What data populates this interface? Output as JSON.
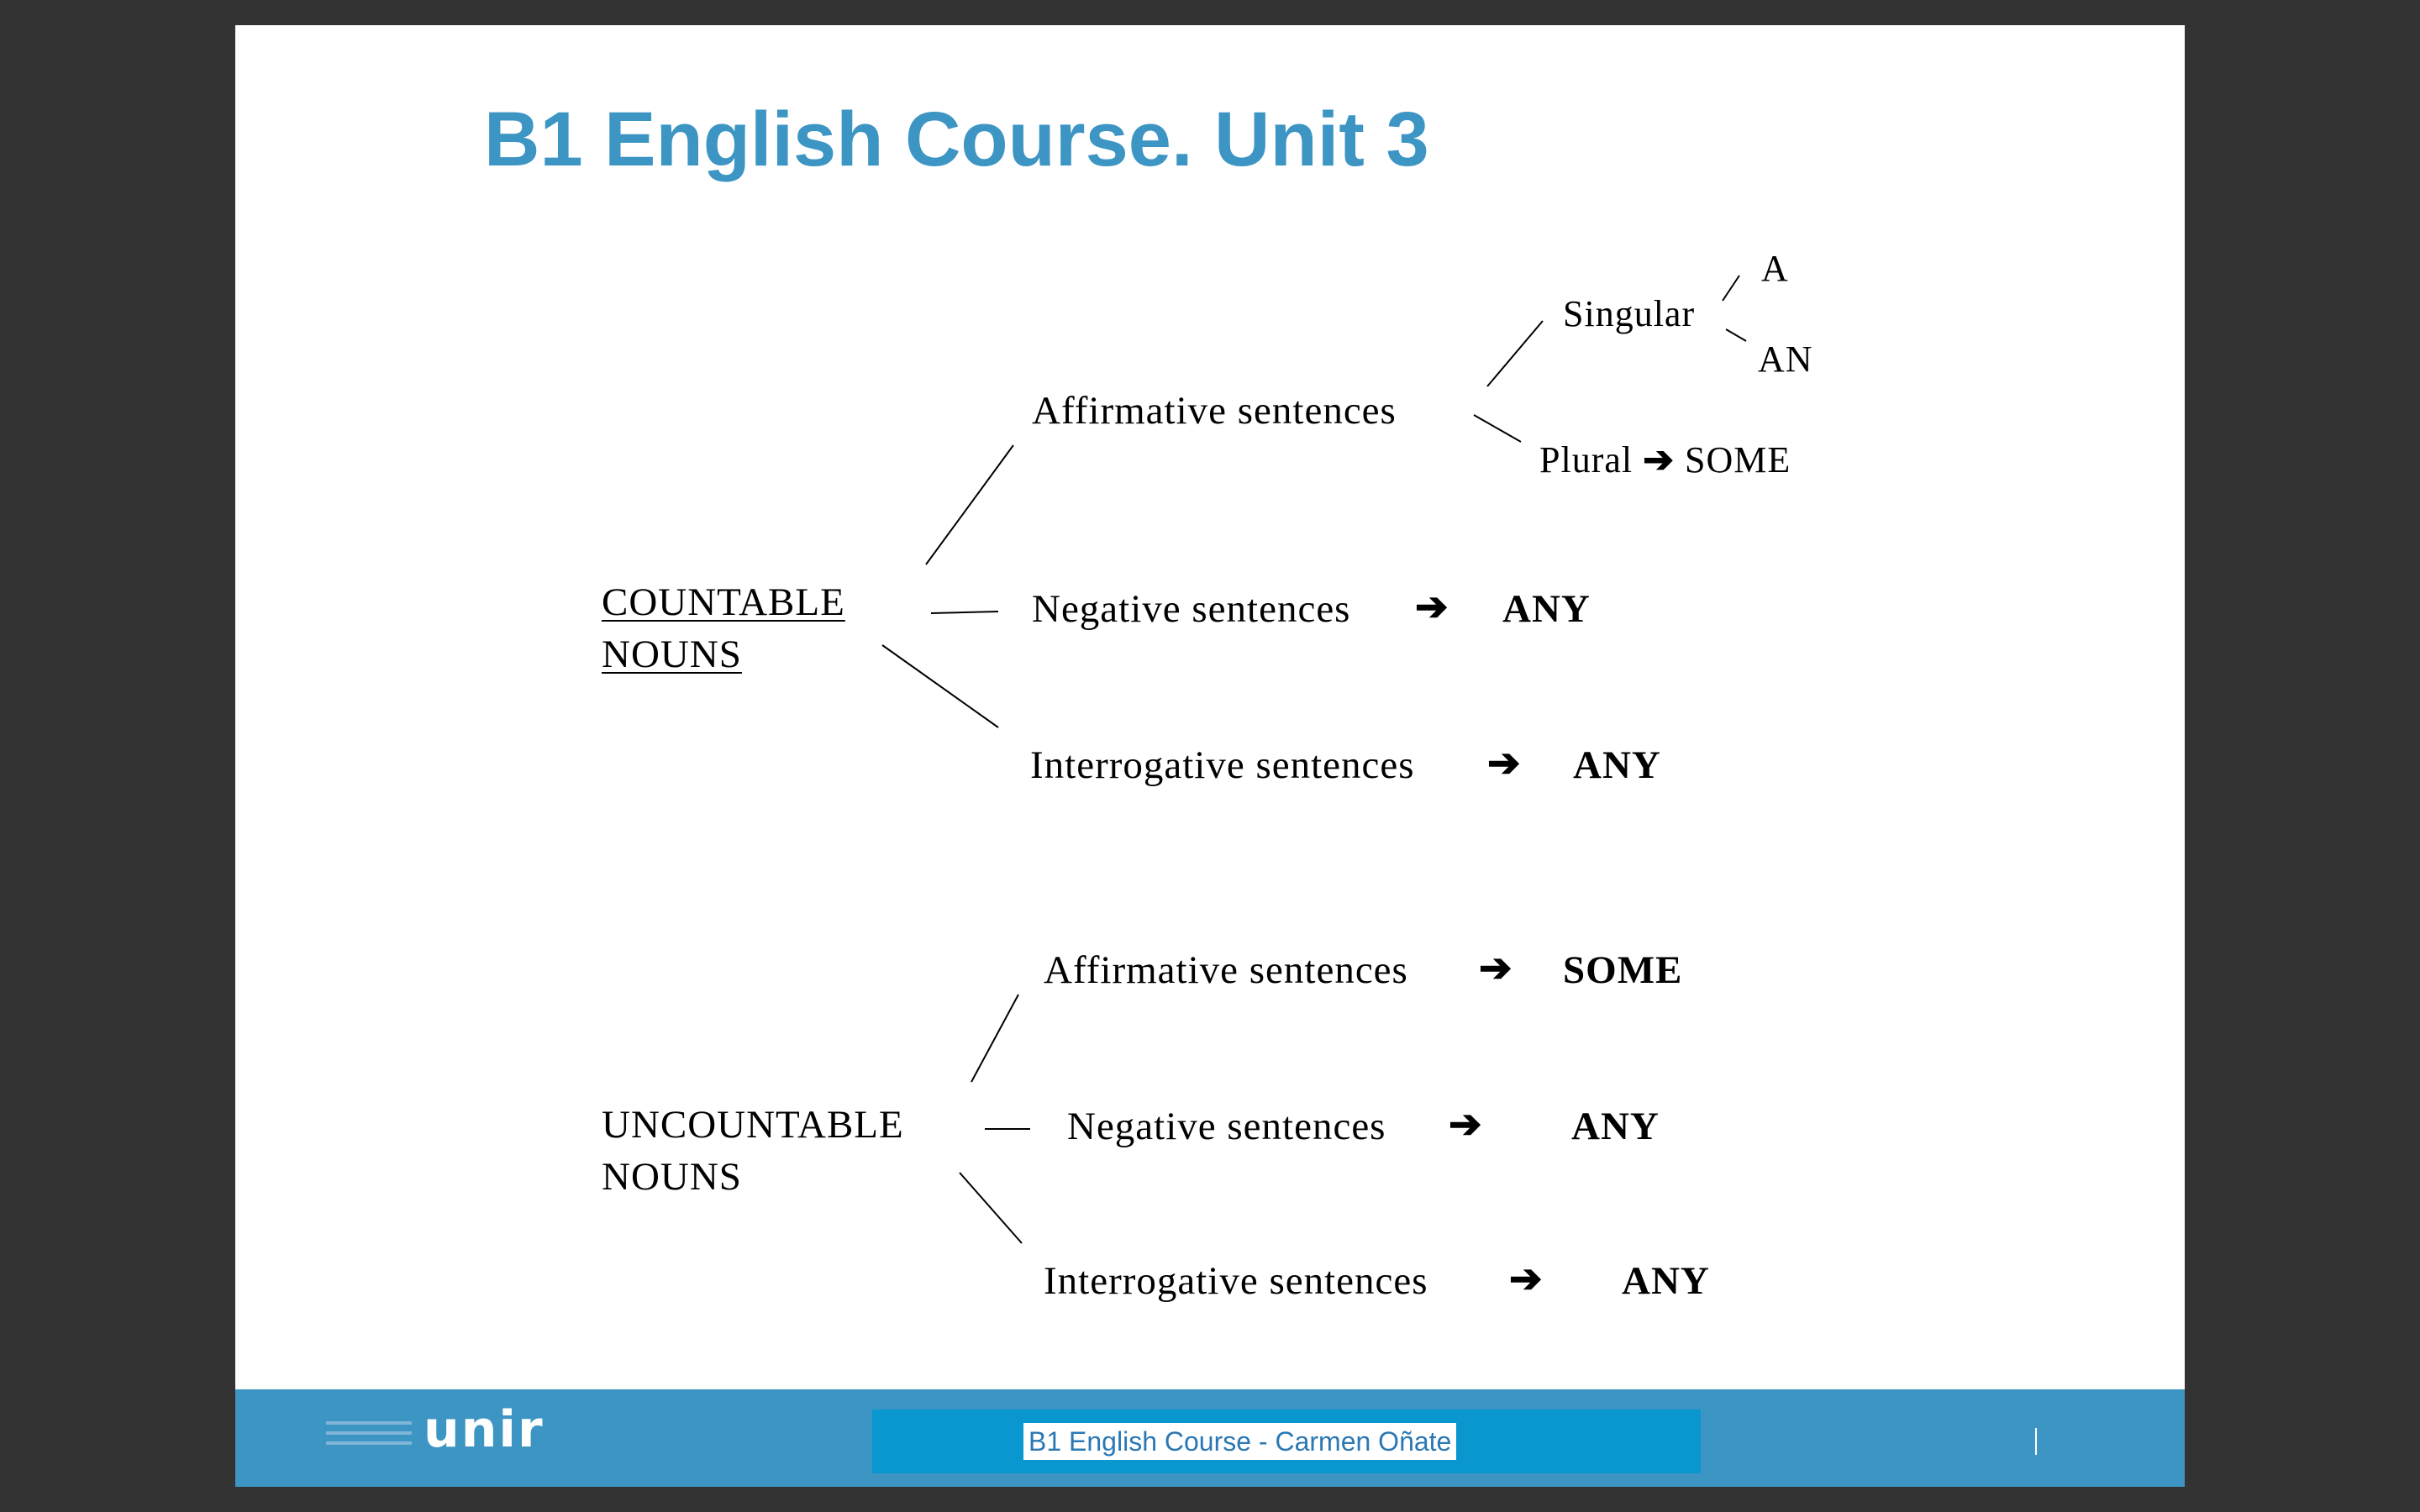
{
  "slide": {
    "title": "B1 English Course. Unit 3"
  },
  "diagram": {
    "countable": {
      "label_line1": "COUNTABLE",
      "label_line2": "NOUNS",
      "affirmative": "Affirmative sentences",
      "singular": "Singular",
      "article_a": "A",
      "article_an": "AN",
      "plural": "Plural",
      "plural_result": "SOME",
      "negative": "Negative sentences",
      "negative_result": "ANY",
      "interrogative": "Interrogative sentences",
      "interrogative_result": "ANY"
    },
    "uncountable": {
      "label_line1": "UNCOUNTABLE",
      "label_line2": "NOUNS",
      "affirmative": "Affirmative sentences",
      "affirmative_result": "SOME",
      "negative": "Negative sentences",
      "negative_result": "ANY",
      "interrogative": "Interrogative sentences",
      "interrogative_result": "ANY"
    },
    "arrow_symbol": "➔"
  },
  "footer": {
    "logo_text": "unir",
    "center_label": "B1 English Course - Carmen Oñate"
  }
}
